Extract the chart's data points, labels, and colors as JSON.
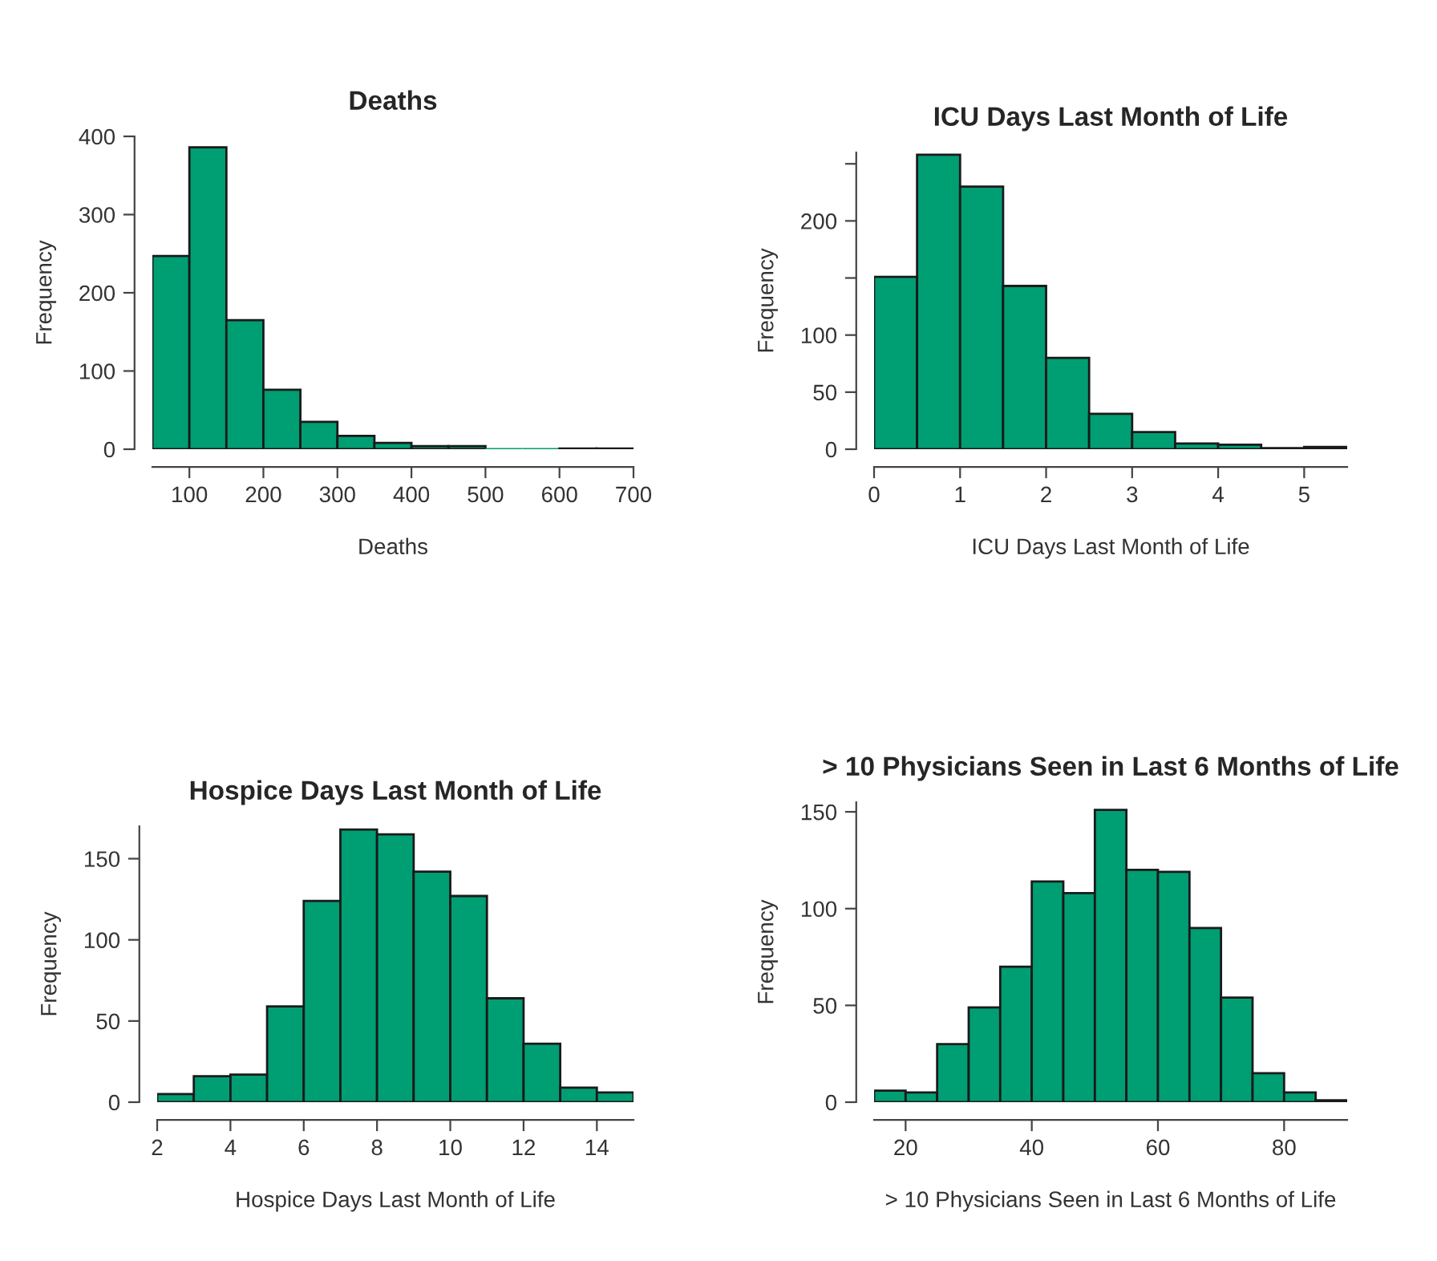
{
  "chart_data": [
    {
      "type": "histogram",
      "title": "Deaths",
      "xlabel": "Deaths",
      "ylabel": "Frequency",
      "color": "#009e73",
      "bins": [
        50,
        100,
        150,
        200,
        250,
        300,
        350,
        400,
        450,
        500,
        550,
        600,
        650,
        700
      ],
      "values": [
        247,
        386,
        165,
        76,
        35,
        17,
        8,
        4,
        4,
        0,
        0,
        1,
        1
      ],
      "xlim": [
        50,
        700
      ],
      "xticks": [
        100,
        200,
        300,
        400,
        500,
        600,
        700
      ],
      "ylim": [
        0,
        400
      ],
      "yticks": [
        0,
        100,
        200,
        300,
        400
      ],
      "grid": false
    },
    {
      "type": "histogram",
      "title": "ICU Days Last Month of Life",
      "xlabel": "ICU Days Last Month of Life",
      "ylabel": "Frequency",
      "color": "#009e73",
      "bins": [
        0,
        0.5,
        1,
        1.5,
        2,
        2.5,
        3,
        3.5,
        4,
        4.5,
        5,
        5.5
      ],
      "values": [
        151,
        258,
        230,
        143,
        80,
        31,
        15,
        5,
        4,
        1,
        2
      ],
      "xlim": [
        0,
        5.5
      ],
      "xticks": [
        0,
        1,
        2,
        3,
        4,
        5
      ],
      "ylim": [
        0,
        260
      ],
      "yticks": [
        0,
        50,
        100,
        {
          "value": 150,
          "label": null
        },
        200,
        {
          "value": 250,
          "label": null
        }
      ],
      "grid": false
    },
    {
      "type": "histogram",
      "title": "Hospice Days Last Month of Life",
      "xlabel": "Hospice Days Last Month of Life",
      "ylabel": "Frequency",
      "color": "#009e73",
      "bins": [
        2,
        3,
        4,
        5,
        6,
        7,
        8,
        9,
        10,
        11,
        12,
        13,
        14,
        15
      ],
      "values": [
        5,
        16,
        17,
        59,
        124,
        168,
        165,
        142,
        127,
        64,
        36,
        9,
        6
      ],
      "xlim": [
        2,
        15
      ],
      "xticks": [
        2,
        4,
        6,
        8,
        10,
        12,
        14
      ],
      "ylim": [
        0,
        170
      ],
      "yticks": [
        0,
        50,
        100,
        150
      ],
      "grid": false
    },
    {
      "type": "histogram",
      "title": "> 10 Physicians Seen in Last 6 Months of Life",
      "xlabel": "> 10 Physicians Seen in Last 6 Months of Life",
      "ylabel": "Frequency",
      "color": "#009e73",
      "bins": [
        15,
        20,
        25,
        30,
        35,
        40,
        45,
        50,
        55,
        60,
        65,
        70,
        75,
        80,
        85,
        90
      ],
      "values": [
        6,
        5,
        30,
        49,
        70,
        114,
        108,
        151,
        120,
        119,
        90,
        54,
        15,
        5,
        1
      ],
      "xlim": [
        15,
        90
      ],
      "xticks": [
        20,
        40,
        60,
        80
      ],
      "ylim": [
        0,
        155
      ],
      "yticks": [
        0,
        50,
        100,
        150
      ],
      "grid": false
    }
  ]
}
